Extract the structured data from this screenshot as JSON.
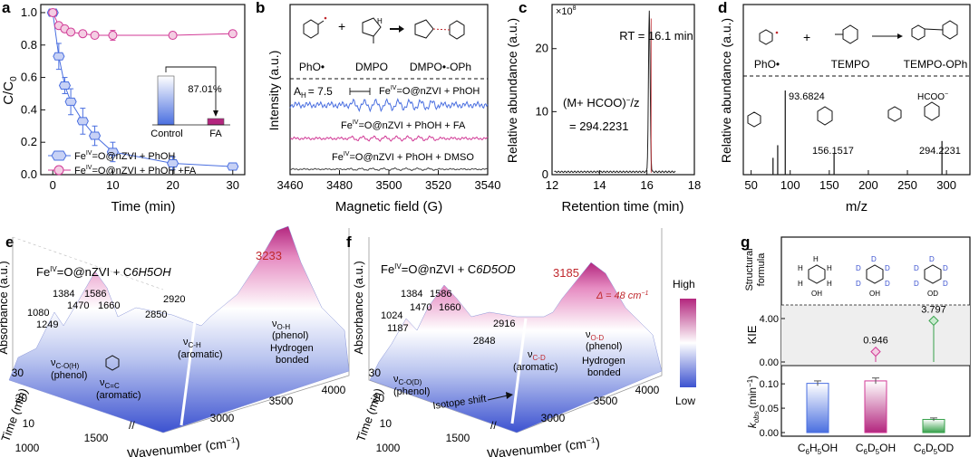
{
  "colors": {
    "blue": "#4a6fe0",
    "pink": "#d13a96",
    "green": "#35a04a",
    "red": "#c0282d",
    "gray": "#444444",
    "mid": "#ffffff",
    "high": "#b3267e",
    "low": "#3c52d0"
  },
  "panels": {
    "a": {
      "letter": "a",
      "xlabel": "Time (min)",
      "ylabel": "C/C",
      "ylabel_sub": "0",
      "xticks": [
        "0",
        "10",
        "20",
        "30"
      ],
      "yticks": [
        "0.0",
        "0.2",
        "0.4",
        "0.6",
        "0.8",
        "1.0"
      ],
      "legend": [
        "Fe",
        "=O@nZVI + PhOH",
        "=O@nZVI + PhOH +FA"
      ],
      "sup": "IV",
      "inset": {
        "pct": "87.01%",
        "cat1": "Control",
        "cat2": "FA"
      }
    },
    "b": {
      "letter": "b",
      "xlabel": "Magnetic field (G)",
      "ylabel": "Intensity (a.u.)",
      "xticks": [
        "3460",
        "3480",
        "3500",
        "3520",
        "3540"
      ],
      "labels": {
        "phob": "PhO•",
        "dmpo": "DMPO",
        "adduct": "DMPO•-OPh",
        "ah": "A",
        "ah_sub": "H",
        "ah_val": "= 7.5",
        "l1": "=O@nZVI + PhOH",
        "l2": "=O@nZVI + PhOH + FA",
        "l3": "=O@nZVI + PhOH + DMSO",
        "fe": "Fe",
        "sup": "IV"
      }
    },
    "c": {
      "letter": "c",
      "xlabel": "Retention time (min)",
      "ylabel": "Relative abundance (a.u.)",
      "xticks": [
        "12",
        "14",
        "16",
        "18"
      ],
      "yticks": [
        "0",
        "10",
        "20"
      ],
      "scale": "×10",
      "scale_sup": "8",
      "rt": "RT = 16.1 min",
      "ion": "(M+ HCOO)",
      "ion_tail": "/z",
      "ion_val": "= 294.2231"
    },
    "d": {
      "letter": "d",
      "xlabel": "m/z",
      "ylabel": "Relative abundance (a.u.)",
      "xticks": [
        "50",
        "100",
        "150",
        "200",
        "250",
        "300"
      ],
      "labels": {
        "phob": "PhO•",
        "tempo": "TEMPO",
        "adduct": "TEMPO-OPh",
        "p1": "93.6824",
        "p2": "156.1517",
        "p3": "294.2231",
        "hcoo": "HCOO"
      }
    },
    "e": {
      "letter": "e",
      "title_fe": "Fe",
      "sup": "IV",
      "title_rest": "=O@nZVI + C",
      "title_formula": "6H5OH",
      "peaks": {
        "p3233": "3233",
        "p1080": "1080",
        "p1249": "1249",
        "p1384": "1384",
        "p1470": "1470",
        "p1586": "1586",
        "p1660": "1660",
        "p2850": "2850",
        "p2920": "2920"
      },
      "ann": {
        "v": "ν",
        "co": "C-O(H)",
        "phenol": "(phenol)",
        "cc": "C=C",
        "arom": "(aromatic)",
        "ch": "C-H",
        "oh": "O-H",
        "hydrogen": "Hydrogen",
        "bonded": "bonded"
      },
      "axes": {
        "x": "Wavenumber (cm",
        "x_tail": ")",
        "y": "Absorbance (a.u.)",
        "z": "Time (min)",
        "xticks": [
          "1000",
          "1500",
          "3000",
          "3500",
          "4000"
        ],
        "zticks": [
          "10",
          "20",
          "30"
        ]
      },
      "colorbar": {
        "high": "High",
        "low": "Low"
      }
    },
    "f": {
      "letter": "f",
      "title_fe": "Fe",
      "sup": "IV",
      "title_rest": "=O@nZVI + C",
      "title_formula": "6D5OD",
      "peaks": {
        "p3185": "3185",
        "delta": "Δ = 48 cm",
        "p1024": "1024",
        "p1187": "1187",
        "p1384": "1384",
        "p1470": "1470",
        "p1586": "1586",
        "p1660": "1660",
        "p2848": "2848",
        "p2916": "2916"
      },
      "ann": {
        "v": "ν",
        "cod": "C-O(D)",
        "phenol": "(phenol)",
        "cd": "C-D",
        "arom": "(aromatic)",
        "od": "O-D",
        "iso": "Isotope shift",
        "hydrogen": "Hydrogen",
        "bonded": "bonded"
      },
      "axes": {
        "x": "Wavenumber (cm",
        "x_tail": ")",
        "y": "Absorbance (a.u.)",
        "z": "Time (min)",
        "xticks": [
          "1000",
          "1500",
          "3000",
          "3500",
          "4000"
        ],
        "zticks": [
          "10",
          "20",
          "30"
        ]
      }
    },
    "g": {
      "letter": "g",
      "ylab1": "Structural",
      "ylab1b": "formula",
      "ylab2": "KIE",
      "ylab3": "k",
      "ylab3_sub": "obs",
      "ylab3_tail": "(min",
      "ylab3_end": ")",
      "kie_ticks": [
        "0.00",
        "4.00"
      ],
      "k_ticks": [
        "0.00",
        "0.05",
        "0.10"
      ],
      "cats": [
        "C6H5OH",
        "C6D5OH",
        "C6D5OD"
      ],
      "H": "H",
      "D": "D",
      "OH": "OH",
      "OD": "OD"
    }
  },
  "chart_data": [
    {
      "panel": "a",
      "type": "line",
      "xlabel": "Time (min)",
      "ylabel": "C/C0",
      "ylim": [
        0,
        1.05
      ],
      "xlim": [
        -2,
        32
      ],
      "series": [
        {
          "name": "FeIV=O@nZVI + PhOH",
          "x": [
            0,
            1,
            2,
            3,
            5,
            7,
            10,
            20,
            30
          ],
          "y": [
            1.0,
            0.73,
            0.55,
            0.45,
            0.33,
            0.24,
            0.14,
            0.07,
            0.05
          ],
          "err": [
            0.02,
            0.08,
            0.05,
            0.08,
            0.08,
            0.06,
            0.06,
            0.04,
            0.02
          ]
        },
        {
          "name": "FeIV=O@nZVI + PhOH +FA",
          "x": [
            0,
            1,
            2,
            3,
            5,
            7,
            10,
            20,
            30
          ],
          "y": [
            1.0,
            0.92,
            0.9,
            0.88,
            0.87,
            0.86,
            0.86,
            0.86,
            0.87
          ],
          "err": [
            0.02,
            0.02,
            0.02,
            0.02,
            0.02,
            0.02,
            0.03,
            0.02,
            0.02
          ]
        }
      ],
      "inset": {
        "type": "bar",
        "categories": [
          "Control",
          "FA"
        ],
        "values": [
          1.0,
          0.13
        ],
        "annotation": "87.01%"
      }
    },
    {
      "panel": "b",
      "type": "line",
      "xlabel": "Magnetic field (G)",
      "ylabel": "Intensity (a.u.)",
      "xlim": [
        3460,
        3540
      ],
      "series": [
        {
          "name": "FeIV=O@nZVI + PhOH"
        },
        {
          "name": "FeIV=O@nZVI + PhOH + FA"
        },
        {
          "name": "FeIV=O@nZVI + PhOH + DMSO"
        }
      ]
    },
    {
      "panel": "c",
      "type": "line",
      "xlabel": "Retention time (min)",
      "ylabel": "Relative abundance (a.u.)",
      "xlim": [
        12,
        18
      ],
      "ylim": [
        0,
        27
      ],
      "peak": {
        "x": 16.1,
        "y": 25.5
      }
    },
    {
      "panel": "d",
      "type": "bar",
      "xlabel": "m/z",
      "ylabel": "Relative abundance (a.u.)",
      "xlim": [
        40,
        330
      ],
      "x": [
        78,
        84,
        93.6824,
        156.1517,
        294.2231
      ],
      "y": [
        0.2,
        0.35,
        1.0,
        0.25,
        0.4
      ]
    },
    {
      "panel": "g",
      "type": "bar",
      "categories": [
        "C6H5OH",
        "C6D5OH",
        "C6D5OD"
      ],
      "kobs": [
        0.101,
        0.106,
        0.027
      ],
      "kobs_err": [
        0.005,
        0.006,
        0.003
      ],
      "kie": [
        null,
        0.946,
        3.797
      ]
    }
  ]
}
